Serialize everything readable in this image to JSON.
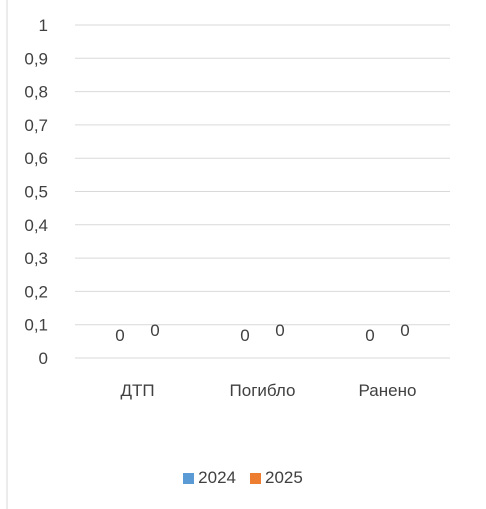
{
  "chart_data": {
    "type": "bar",
    "categories": [
      "ДТП",
      "Погибло",
      "Ранено"
    ],
    "series": [
      {
        "name": "2024",
        "values": [
          0,
          0,
          0
        ],
        "color": "#5B9BD5"
      },
      {
        "name": "2025",
        "values": [
          0,
          0,
          0
        ],
        "color": "#ED7D31"
      }
    ],
    "ylim": [
      0,
      1
    ],
    "yticks": [
      "0",
      "0,1",
      "0,2",
      "0,3",
      "0,4",
      "0,5",
      "0,6",
      "0,7",
      "0,8",
      "0,9",
      "1"
    ],
    "grid": true,
    "legend_position": "bottom",
    "data_labels": true
  },
  "legend": [
    {
      "label": "2024",
      "color": "#5B9BD5"
    },
    {
      "label": "2025",
      "color": "#ED7D31"
    }
  ]
}
